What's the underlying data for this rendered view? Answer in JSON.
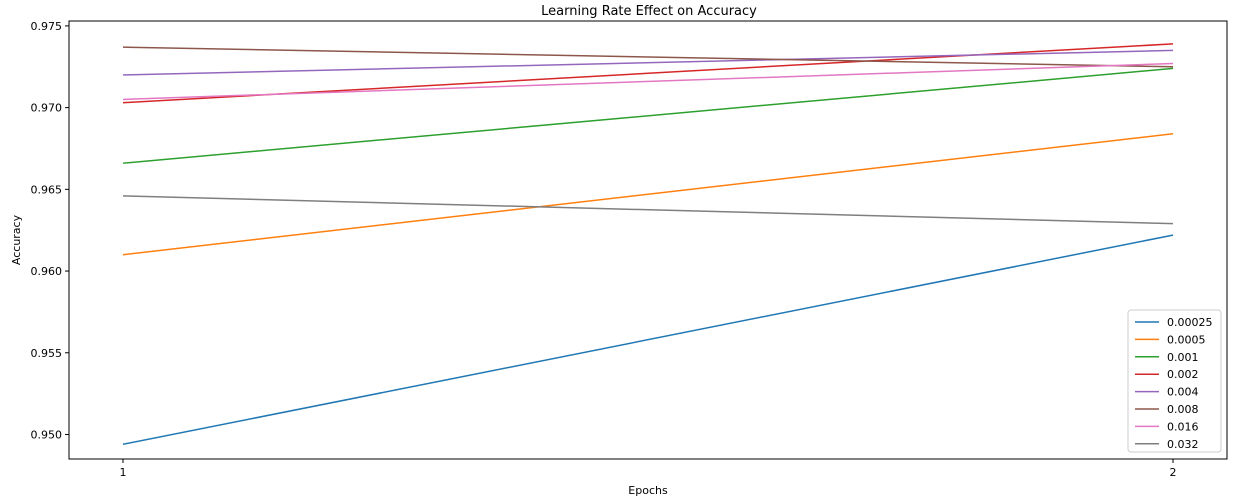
{
  "chart_data": {
    "type": "line",
    "title": "Learning Rate Effect on Accuracy",
    "xlabel": "Epochs",
    "ylabel": "Accuracy",
    "x": [
      1,
      2
    ],
    "xticks": [
      "1",
      "2"
    ],
    "yticks": [
      "0.950",
      "0.955",
      "0.960",
      "0.965",
      "0.970",
      "0.975"
    ],
    "ylim": [
      0.9485,
      0.9753
    ],
    "grid": false,
    "legend_position": "lower right",
    "series": [
      {
        "name": "0.00025",
        "color": "#1f77b4",
        "values": [
          0.9494,
          0.9622
        ]
      },
      {
        "name": "0.0005",
        "color": "#ff7f0e",
        "values": [
          0.961,
          0.9684
        ]
      },
      {
        "name": "0.001",
        "color": "#2ca02c",
        "values": [
          0.9666,
          0.9724
        ]
      },
      {
        "name": "0.002",
        "color": "#d62728",
        "values": [
          0.9703,
          0.9739
        ]
      },
      {
        "name": "0.004",
        "color": "#9467bd",
        "values": [
          0.972,
          0.9735
        ]
      },
      {
        "name": "0.008",
        "color": "#8c564b",
        "values": [
          0.9737,
          0.9725
        ]
      },
      {
        "name": "0.016",
        "color": "#e377c2",
        "values": [
          0.9705,
          0.9727
        ]
      },
      {
        "name": "0.032",
        "color": "#7f7f7f",
        "values": [
          0.9646,
          0.9629
        ]
      }
    ]
  }
}
